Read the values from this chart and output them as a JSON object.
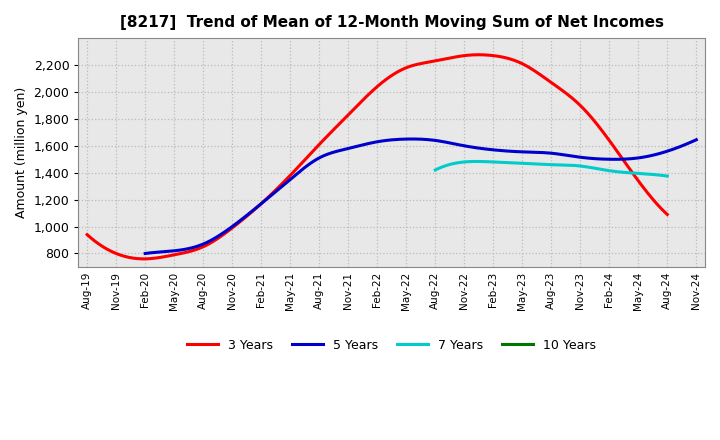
{
  "title": "[8217]  Trend of Mean of 12-Month Moving Sum of Net Incomes",
  "ylabel": "Amount (million yen)",
  "xlabel": "",
  "background_color": "#ffffff",
  "plot_bg_color": "#e8e8e8",
  "grid_color": "#bbbbbb",
  "ylim": [
    700,
    2400
  ],
  "yticks": [
    800,
    1000,
    1200,
    1400,
    1600,
    1800,
    2000,
    2200
  ],
  "x_labels": [
    "Aug-19",
    "Nov-19",
    "Feb-20",
    "May-20",
    "Aug-20",
    "Nov-20",
    "Feb-21",
    "May-21",
    "Aug-21",
    "Nov-21",
    "Feb-22",
    "May-22",
    "Aug-22",
    "Nov-22",
    "Feb-23",
    "May-23",
    "Aug-23",
    "Nov-23",
    "Feb-24",
    "May-24",
    "Aug-24",
    "Nov-24"
  ],
  "series": {
    "3 Years": {
      "color": "#ff0000",
      "linewidth": 2.2,
      "values": [
        940,
        800,
        760,
        790,
        850,
        990,
        1170,
        1380,
        1610,
        1830,
        2040,
        2180,
        2230,
        2270,
        2270,
        2210,
        2070,
        1900,
        1640,
        1340,
        1090,
        null
      ]
    },
    "5 Years": {
      "color": "#0000cc",
      "linewidth": 2.2,
      "values": [
        null,
        null,
        800,
        820,
        870,
        1000,
        1170,
        1350,
        1510,
        1580,
        1630,
        1650,
        1640,
        1600,
        1570,
        1555,
        1545,
        1515,
        1500,
        1510,
        1560,
        1645
      ]
    },
    "7 Years": {
      "color": "#00cccc",
      "linewidth": 2.2,
      "values": [
        null,
        null,
        null,
        null,
        null,
        null,
        null,
        null,
        null,
        null,
        null,
        null,
        1420,
        1480,
        1480,
        1470,
        1460,
        1450,
        1415,
        1395,
        1375,
        null
      ]
    },
    "10 Years": {
      "color": "#007700",
      "linewidth": 2.2,
      "values": [
        null,
        null,
        null,
        null,
        null,
        null,
        null,
        null,
        null,
        null,
        null,
        null,
        null,
        null,
        null,
        null,
        null,
        null,
        null,
        null,
        null,
        null
      ]
    }
  },
  "legend_labels": [
    "3 Years",
    "5 Years",
    "7 Years",
    "10 Years"
  ],
  "legend_colors": [
    "#ff0000",
    "#0000cc",
    "#00cccc",
    "#007700"
  ]
}
